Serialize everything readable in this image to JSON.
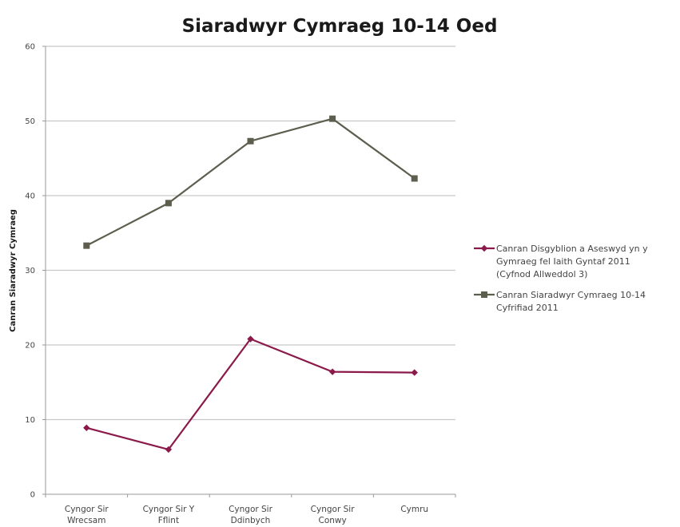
{
  "chart_data": {
    "type": "line",
    "title": "Siaradwyr Cymraeg 10-14 Oed",
    "xlabel": "",
    "ylabel": "Canran Siaradwyr Cymraeg",
    "ylim": [
      0,
      60
    ],
    "yticks": [
      0,
      10,
      20,
      30,
      40,
      50,
      60
    ],
    "grid": true,
    "legend_position": "right",
    "categories": [
      [
        "Cyngor Sir",
        "Wrecsam"
      ],
      [
        "Cyngor Sir Y",
        "Fflint"
      ],
      [
        "Cyngor Sir",
        "Ddinbych"
      ],
      [
        "Cyngor Sir",
        "Conwy"
      ],
      [
        "Cymru"
      ]
    ],
    "series": [
      {
        "name_lines": [
          "Canran Disgyblion a Aseswyd yn y",
          "Gymraeg fel Iaith Gyntaf 2011",
          "(Cyfnod Allweddol 3)"
        ],
        "values": [
          8.9,
          6.0,
          20.8,
          16.4,
          16.3
        ],
        "color": "#8b1a4a",
        "marker": "diamond"
      },
      {
        "name_lines": [
          "Canran Siaradwyr Cymraeg 10-14",
          "Cyfrifiad 2011"
        ],
        "values": [
          33.3,
          39.0,
          47.3,
          50.3,
          42.3
        ],
        "color": "#5e5e4e",
        "marker": "square"
      }
    ]
  }
}
